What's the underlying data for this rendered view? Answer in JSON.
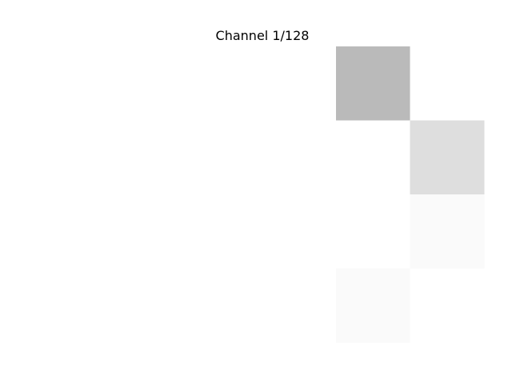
{
  "chart_data": {
    "type": "heatmap",
    "title": "Channel 1/128",
    "xlabel": "",
    "ylabel": "",
    "rows": 4,
    "cols": 4,
    "values": [
      [
        0,
        0,
        0.27,
        0
      ],
      [
        0,
        0,
        0,
        0.13
      ],
      [
        0,
        0,
        0,
        0.02
      ],
      [
        0,
        0,
        0.02,
        0
      ]
    ],
    "value_range": [
      0,
      1
    ],
    "colormap": "grayscale-inverted",
    "axes_visible": false,
    "grid": false
  }
}
